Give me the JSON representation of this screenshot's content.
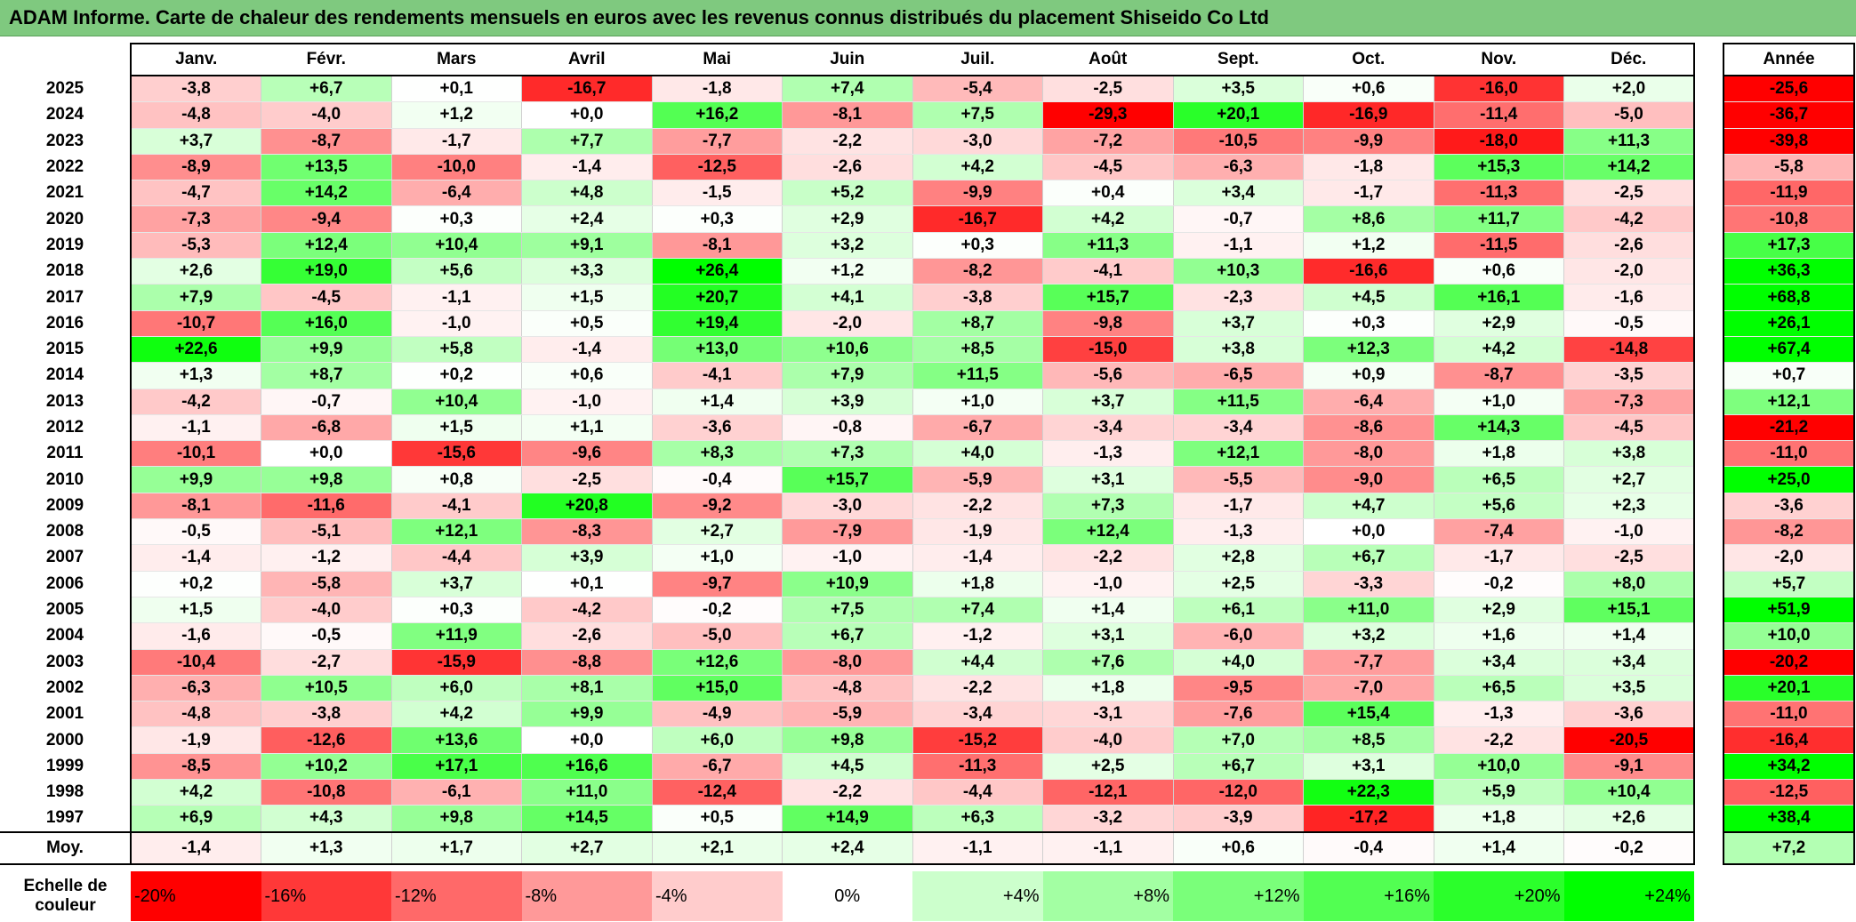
{
  "title": "ADAM Informe. Carte de chaleur des rendements mensuels en euros avec les revenus connus distribués du placement Shiseido Co Ltd",
  "chart_data": {
    "type": "heatmap",
    "title": "ADAM Informe. Carte de chaleur des rendements mensuels en euros avec les revenus connus distribués du placement Shiseido Co Ltd",
    "months": [
      "Janv.",
      "Févr.",
      "Mars",
      "Avril",
      "Mai",
      "Juin",
      "Juil.",
      "Août",
      "Sept.",
      "Oct.",
      "Nov.",
      "Déc."
    ],
    "annual_header": "Année",
    "rows": [
      {
        "year": "2025",
        "values": [
          "-3,8",
          "+6,7",
          "+0,1",
          "-16,7",
          "-1,8",
          "+7,4",
          "-5,4",
          "-2,5",
          "+3,5",
          "+0,6",
          "-16,0",
          "+2,0"
        ],
        "annual": "-25,6"
      },
      {
        "year": "2024",
        "values": [
          "-4,8",
          "-4,0",
          "+1,2",
          "+0,0",
          "+16,2",
          "-8,1",
          "+7,5",
          "-29,3",
          "+20,1",
          "-16,9",
          "-11,4",
          "-5,0"
        ],
        "annual": "-36,7"
      },
      {
        "year": "2023",
        "values": [
          "+3,7",
          "-8,7",
          "-1,7",
          "+7,7",
          "-7,7",
          "-2,2",
          "-3,0",
          "-7,2",
          "-10,5",
          "-9,9",
          "-18,0",
          "+11,3"
        ],
        "annual": "-39,8"
      },
      {
        "year": "2022",
        "values": [
          "-8,9",
          "+13,5",
          "-10,0",
          "-1,4",
          "-12,5",
          "-2,6",
          "+4,2",
          "-4,5",
          "-6,3",
          "-1,8",
          "+15,3",
          "+14,2"
        ],
        "annual": "-5,8"
      },
      {
        "year": "2021",
        "values": [
          "-4,7",
          "+14,2",
          "-6,4",
          "+4,8",
          "-1,5",
          "+5,2",
          "-9,9",
          "+0,4",
          "+3,4",
          "-1,7",
          "-11,3",
          "-2,5"
        ],
        "annual": "-11,9"
      },
      {
        "year": "2020",
        "values": [
          "-7,3",
          "-9,4",
          "+0,3",
          "+2,4",
          "+0,3",
          "+2,9",
          "-16,7",
          "+4,2",
          "-0,7",
          "+8,6",
          "+11,7",
          "-4,2"
        ],
        "annual": "-10,8"
      },
      {
        "year": "2019",
        "values": [
          "-5,3",
          "+12,4",
          "+10,4",
          "+9,1",
          "-8,1",
          "+3,2",
          "+0,3",
          "+11,3",
          "-1,1",
          "+1,2",
          "-11,5",
          "-2,6"
        ],
        "annual": "+17,3"
      },
      {
        "year": "2018",
        "values": [
          "+2,6",
          "+19,0",
          "+5,6",
          "+3,3",
          "+26,4",
          "+1,2",
          "-8,2",
          "-4,1",
          "+10,3",
          "-16,6",
          "+0,6",
          "-2,0"
        ],
        "annual": "+36,3"
      },
      {
        "year": "2017",
        "values": [
          "+7,9",
          "-4,5",
          "-1,1",
          "+1,5",
          "+20,7",
          "+4,1",
          "-3,8",
          "+15,7",
          "-2,3",
          "+4,5",
          "+16,1",
          "-1,6"
        ],
        "annual": "+68,8"
      },
      {
        "year": "2016",
        "values": [
          "-10,7",
          "+16,0",
          "-1,0",
          "+0,5",
          "+19,4",
          "-2,0",
          "+8,7",
          "-9,8",
          "+3,7",
          "+0,3",
          "+2,9",
          "-0,5"
        ],
        "annual": "+26,1"
      },
      {
        "year": "2015",
        "values": [
          "+22,6",
          "+9,9",
          "+5,8",
          "-1,4",
          "+13,0",
          "+10,6",
          "+8,5",
          "-15,0",
          "+3,8",
          "+12,3",
          "+4,2",
          "-14,8"
        ],
        "annual": "+67,4"
      },
      {
        "year": "2014",
        "values": [
          "+1,3",
          "+8,7",
          "+0,2",
          "+0,6",
          "-4,1",
          "+7,9",
          "+11,5",
          "-5,6",
          "-6,5",
          "+0,9",
          "-8,7",
          "-3,5"
        ],
        "annual": "+0,7"
      },
      {
        "year": "2013",
        "values": [
          "-4,2",
          "-0,7",
          "+10,4",
          "-1,0",
          "+1,4",
          "+3,9",
          "+1,0",
          "+3,7",
          "+11,5",
          "-6,4",
          "+1,0",
          "-7,3"
        ],
        "annual": "+12,1"
      },
      {
        "year": "2012",
        "values": [
          "-1,1",
          "-6,8",
          "+1,5",
          "+1,1",
          "-3,6",
          "-0,8",
          "-6,7",
          "-3,4",
          "-3,4",
          "-8,6",
          "+14,3",
          "-4,5"
        ],
        "annual": "-21,2"
      },
      {
        "year": "2011",
        "values": [
          "-10,1",
          "+0,0",
          "-15,6",
          "-9,6",
          "+8,3",
          "+7,3",
          "+4,0",
          "-1,3",
          "+12,1",
          "-8,0",
          "+1,8",
          "+3,8"
        ],
        "annual": "-11,0"
      },
      {
        "year": "2010",
        "values": [
          "+9,9",
          "+9,8",
          "+0,8",
          "-2,5",
          "-0,4",
          "+15,7",
          "-5,9",
          "+3,1",
          "-5,5",
          "-9,0",
          "+6,5",
          "+2,7"
        ],
        "annual": "+25,0"
      },
      {
        "year": "2009",
        "values": [
          "-8,1",
          "-11,6",
          "-4,1",
          "+20,8",
          "-9,2",
          "-3,0",
          "-2,2",
          "+7,3",
          "-1,7",
          "+4,7",
          "+5,6",
          "+2,3"
        ],
        "annual": "-3,6"
      },
      {
        "year": "2008",
        "values": [
          "-0,5",
          "-5,1",
          "+12,1",
          "-8,3",
          "+2,7",
          "-7,9",
          "-1,9",
          "+12,4",
          "-1,3",
          "+0,0",
          "-7,4",
          "-1,0"
        ],
        "annual": "-8,2"
      },
      {
        "year": "2007",
        "values": [
          "-1,4",
          "-1,2",
          "-4,4",
          "+3,9",
          "+1,0",
          "-1,0",
          "-1,4",
          "-2,2",
          "+2,8",
          "+6,7",
          "-1,7",
          "-2,5"
        ],
        "annual": "-2,0"
      },
      {
        "year": "2006",
        "values": [
          "+0,2",
          "-5,8",
          "+3,7",
          "+0,1",
          "-9,7",
          "+10,9",
          "+1,8",
          "-1,0",
          "+2,5",
          "-3,3",
          "-0,2",
          "+8,0"
        ],
        "annual": "+5,7"
      },
      {
        "year": "2005",
        "values": [
          "+1,5",
          "-4,0",
          "+0,3",
          "-4,2",
          "-0,2",
          "+7,5",
          "+7,4",
          "+1,4",
          "+6,1",
          "+11,0",
          "+2,9",
          "+15,1"
        ],
        "annual": "+51,9"
      },
      {
        "year": "2004",
        "values": [
          "-1,6",
          "-0,5",
          "+11,9",
          "-2,6",
          "-5,0",
          "+6,7",
          "-1,2",
          "+3,1",
          "-6,0",
          "+3,2",
          "+1,6",
          "+1,4"
        ],
        "annual": "+10,0"
      },
      {
        "year": "2003",
        "values": [
          "-10,4",
          "-2,7",
          "-15,9",
          "-8,8",
          "+12,6",
          "-8,0",
          "+4,4",
          "+7,6",
          "+4,0",
          "-7,7",
          "+3,4",
          "+3,4"
        ],
        "annual": "-20,2"
      },
      {
        "year": "2002",
        "values": [
          "-6,3",
          "+10,5",
          "+6,0",
          "+8,1",
          "+15,0",
          "-4,8",
          "-2,2",
          "+1,8",
          "-9,5",
          "-7,0",
          "+6,5",
          "+3,5"
        ],
        "annual": "+20,1"
      },
      {
        "year": "2001",
        "values": [
          "-4,8",
          "-3,8",
          "+4,2",
          "+9,9",
          "-4,9",
          "-5,9",
          "-3,4",
          "-3,1",
          "-7,6",
          "+15,4",
          "-1,3",
          "-3,6"
        ],
        "annual": "-11,0"
      },
      {
        "year": "2000",
        "values": [
          "-1,9",
          "-12,6",
          "+13,6",
          "+0,0",
          "+6,0",
          "+9,8",
          "-15,2",
          "-4,0",
          "+7,0",
          "+8,5",
          "-2,2",
          "-20,5"
        ],
        "annual": "-16,4"
      },
      {
        "year": "1999",
        "values": [
          "-8,5",
          "+10,2",
          "+17,1",
          "+16,6",
          "-6,7",
          "+4,5",
          "-11,3",
          "+2,5",
          "+6,7",
          "+3,1",
          "+10,0",
          "-9,1"
        ],
        "annual": "+34,2"
      },
      {
        "year": "1998",
        "values": [
          "+4,2",
          "-10,8",
          "-6,1",
          "+11,0",
          "-12,4",
          "-2,2",
          "-4,4",
          "-12,1",
          "-12,0",
          "+22,3",
          "+5,9",
          "+10,4"
        ],
        "annual": "-12,5"
      },
      {
        "year": "1997",
        "values": [
          "+6,9",
          "+4,3",
          "+9,8",
          "+14,5",
          "+0,5",
          "+14,9",
          "+6,3",
          "-3,2",
          "-3,9",
          "-17,2",
          "+1,8",
          "+2,6"
        ],
        "annual": "+38,4"
      }
    ],
    "average": {
      "label": "Moy.",
      "values": [
        "-1,4",
        "+1,3",
        "+1,7",
        "+2,7",
        "+2,1",
        "+2,4",
        "-1,1",
        "-1,1",
        "+0,6",
        "-0,4",
        "+1,4",
        "-0,2"
      ],
      "annual": "+7,2"
    },
    "color_scale": {
      "label": "Echelle de couleur",
      "stops": [
        {
          "label": "-20%",
          "value": -20,
          "color": "#ff0000"
        },
        {
          "label": "-16%",
          "value": -16,
          "color": "#ff3838"
        },
        {
          "label": "-12%",
          "value": -12,
          "color": "#ff6969"
        },
        {
          "label": "-8%",
          "value": -8,
          "color": "#ff9999"
        },
        {
          "label": "-4%",
          "value": -4,
          "color": "#ffcccc"
        },
        {
          "label": "0%",
          "value": 0,
          "color": "#ffffff"
        },
        {
          "label": "+4%",
          "value": 4,
          "color": "#ccffcc"
        },
        {
          "label": "+8%",
          "value": 8,
          "color": "#a3ffa3"
        },
        {
          "label": "+12%",
          "value": 12,
          "color": "#7aff7a"
        },
        {
          "label": "+16%",
          "value": 16,
          "color": "#52ff52"
        },
        {
          "label": "+20%",
          "value": 20,
          "color": "#2bff2b"
        },
        {
          "label": "+24%",
          "value": 24,
          "color": "#00ff00"
        }
      ]
    }
  }
}
